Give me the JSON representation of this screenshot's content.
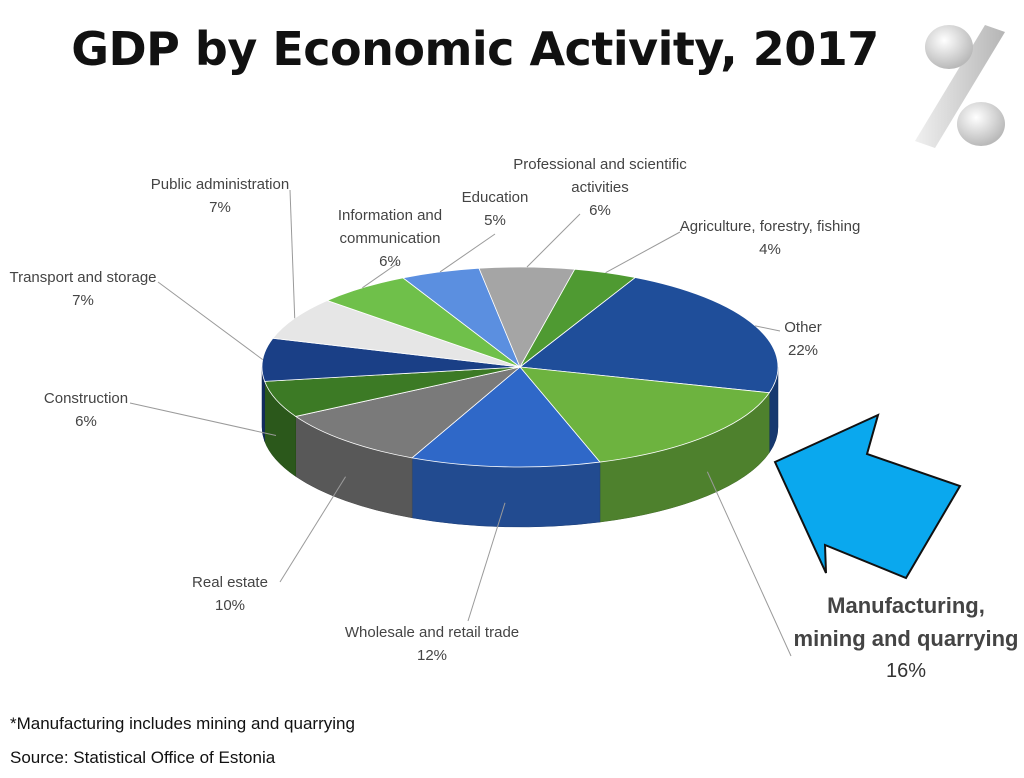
{
  "page": {
    "title": "GDP by Economic Activity, 2017",
    "footnote": "*Manufacturing includes mining and quarrying",
    "source": "Source: Statistical Office of Estonia"
  },
  "icons": [
    "percent-icon",
    "arrow-icon"
  ],
  "chart_data": {
    "type": "pie",
    "title": "GDP by Economic Activity, 2017",
    "slices": [
      {
        "label": "Other",
        "value": 22,
        "display": "22%",
        "color": "#1f4e9a"
      },
      {
        "label": "Manufacturing, mining and quarrying",
        "label_lines": [
          "Manufacturing,",
          "mining and quarrying"
        ],
        "value": 16,
        "display": "16%",
        "color": "#6db33f",
        "highlight": true
      },
      {
        "label": "Wholesale and retail trade",
        "value": 12,
        "display": "12%",
        "color": "#2f68c8"
      },
      {
        "label": "Real estate",
        "value": 10,
        "display": "10%",
        "color": "#7a7a7a"
      },
      {
        "label": "Construction",
        "value": 6,
        "display": "6%",
        "color": "#3c7a25"
      },
      {
        "label": "Transport and storage",
        "value": 7,
        "display": "7%",
        "color": "#1a3f86"
      },
      {
        "label": "Public administration",
        "value": 7,
        "display": "7%",
        "color": "#e6e6e6"
      },
      {
        "label": "Information and communication",
        "label_lines": [
          "Information and",
          "communication"
        ],
        "value": 6,
        "display": "6%",
        "color": "#6fc04a"
      },
      {
        "label": "Education",
        "value": 5,
        "display": "5%",
        "color": "#5b8fe0"
      },
      {
        "label": "Professional and scientific activities",
        "label_lines": [
          "Professional and scientific",
          "activities"
        ],
        "value": 6,
        "display": "6%",
        "color": "#a5a5a5"
      },
      {
        "label": "Agriculture, forestry, fishing",
        "value": 4,
        "display": "4%",
        "color": "#4f9a32"
      }
    ],
    "callout_color": "#0aa8ee"
  }
}
